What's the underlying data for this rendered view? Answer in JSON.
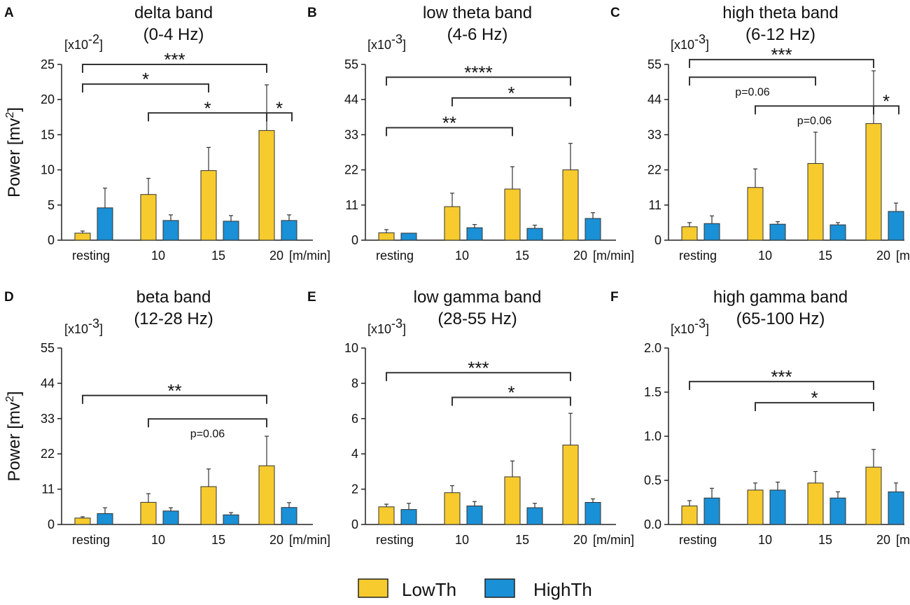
{
  "legend": [
    {
      "label": "LowTh",
      "color": "#f7cb2d"
    },
    {
      "label": "HighTh",
      "color": "#1a90d6"
    }
  ],
  "colors": {
    "low": "#f7cb2d",
    "high": "#1a90d6",
    "axis": "#222222",
    "bracket": "#333333"
  },
  "chart_data": [
    {
      "type": "bar",
      "panel": "A",
      "title": [
        "delta band",
        "(0-4 Hz)"
      ],
      "ylabel": "Power  [mv2]",
      "ylabel_base": "Power  [mv",
      "ylabel_sup": "2",
      "ylabel_end": "]",
      "scale_base": "[x10",
      "scale_exp": "-2",
      "scale_end": "]",
      "ylim": [
        0,
        25
      ],
      "yticks": [
        0,
        5,
        10,
        15,
        20,
        25
      ],
      "yticklabels": [
        "0",
        "5",
        "10",
        "15",
        "20",
        "25"
      ],
      "categories": [
        "resting",
        "10",
        "15",
        "20"
      ],
      "unit": "[m/min]",
      "series": [
        {
          "name": "LowTh",
          "values": [
            1.0,
            6.5,
            9.9,
            15.6
          ],
          "errors": [
            0.3,
            2.3,
            3.3,
            6.5
          ]
        },
        {
          "name": "HighTh",
          "values": [
            4.6,
            2.8,
            2.7,
            2.8
          ],
          "errors": [
            2.8,
            0.8,
            0.8,
            0.8
          ]
        }
      ],
      "annotations": [
        {
          "from": 0,
          "to": 3,
          "y": 25,
          "label": "***"
        },
        {
          "from": 0,
          "to": 2,
          "y": 22.2,
          "label": "*"
        },
        {
          "from": 1,
          "to": 3,
          "y": 18.1,
          "label": "*"
        },
        {
          "from": 3,
          "to": 3.5,
          "y": 18.1,
          "label": "*"
        }
      ]
    },
    {
      "type": "bar",
      "panel": "B",
      "title": [
        "low theta band",
        "(4-6 Hz)"
      ],
      "scale_base": "[x10",
      "scale_exp": "-3",
      "scale_end": "]",
      "ylim": [
        0,
        55
      ],
      "yticks": [
        0,
        11,
        22,
        33,
        44,
        55
      ],
      "yticklabels": [
        "0",
        "11",
        "22",
        "33",
        "44",
        "55"
      ],
      "categories": [
        "resting",
        "10",
        "15",
        "20"
      ],
      "unit": "[m/min]",
      "series": [
        {
          "name": "LowTh",
          "values": [
            2.3,
            10.5,
            16.0,
            22.0
          ],
          "errors": [
            1.0,
            4.2,
            7.0,
            8.3
          ]
        },
        {
          "name": "HighTh",
          "values": [
            2.2,
            3.9,
            3.7,
            6.8
          ],
          "errors": [
            0.0,
            1.0,
            1.0,
            1.8
          ]
        }
      ],
      "annotations": [
        {
          "from": 0,
          "to": 3,
          "y": 51,
          "label": "****"
        },
        {
          "from": 1,
          "to": 3,
          "y": 44.5,
          "label": "*"
        },
        {
          "from": 0,
          "to": 2,
          "y": 35.2,
          "label": "**"
        }
      ]
    },
    {
      "type": "bar",
      "panel": "C",
      "title": [
        "high theta band",
        "(6-12 Hz)"
      ],
      "scale_base": "[x10",
      "scale_exp": "-3",
      "scale_end": "]",
      "ylim": [
        0,
        55
      ],
      "yticks": [
        0,
        11,
        22,
        33,
        44,
        55
      ],
      "yticklabels": [
        "0",
        "11",
        "22",
        "33",
        "44",
        "55"
      ],
      "categories": [
        "resting",
        "10",
        "15",
        "20"
      ],
      "unit": "[m/min]",
      "series": [
        {
          "name": "LowTh",
          "values": [
            4.2,
            16.5,
            24.0,
            36.5
          ],
          "errors": [
            1.3,
            5.8,
            9.8,
            16.5
          ]
        },
        {
          "name": "HighTh",
          "values": [
            5.2,
            5.0,
            4.8,
            9.0
          ],
          "errors": [
            2.4,
            0.8,
            0.7,
            2.6
          ]
        }
      ],
      "annotations": [
        {
          "from": 0,
          "to": 3,
          "y": 56.5,
          "label": "***"
        },
        {
          "from": 0,
          "to": 2,
          "y": 51.0,
          "label": "p=0.06"
        },
        {
          "from": 1,
          "to": 3,
          "y": 42.0,
          "label": "p=0.06"
        },
        {
          "from": 3,
          "to": 3.5,
          "y": 42.0,
          "label": "*"
        }
      ]
    },
    {
      "type": "bar",
      "panel": "D",
      "title": [
        "beta band",
        "(12-28 Hz)"
      ],
      "ylabel": "Power  [mv2]",
      "ylabel_base": "Power  [mv",
      "ylabel_sup": "2",
      "ylabel_end": "]",
      "scale_base": "[x10",
      "scale_exp": "-3",
      "scale_end": "]",
      "ylim": [
        0,
        55
      ],
      "yticks": [
        0,
        11,
        22,
        33,
        44,
        55
      ],
      "yticklabels": [
        "0",
        "11",
        "22",
        "33",
        "44",
        "55"
      ],
      "categories": [
        "resting",
        "10",
        "15",
        "20"
      ],
      "unit": "[m/min]",
      "series": [
        {
          "name": "LowTh",
          "values": [
            2.0,
            6.9,
            11.8,
            18.3
          ],
          "errors": [
            0.4,
            2.7,
            5.5,
            9.2
          ]
        },
        {
          "name": "HighTh",
          "values": [
            3.4,
            4.2,
            3.0,
            5.3
          ],
          "errors": [
            1.8,
            1.0,
            0.7,
            1.5
          ]
        }
      ],
      "annotations": [
        {
          "from": 0,
          "to": 3,
          "y": 40.2,
          "label": "**"
        },
        {
          "from": 1,
          "to": 3,
          "y": 32.9,
          "label": "p=0.06"
        }
      ]
    },
    {
      "type": "bar",
      "panel": "E",
      "title": [
        "low gamma band",
        "(28-55 Hz)"
      ],
      "scale_base": "[x10",
      "scale_exp": "-3",
      "scale_end": "]",
      "ylim": [
        0,
        10
      ],
      "yticks": [
        0,
        2,
        4,
        6,
        8,
        10
      ],
      "yticklabels": [
        "0",
        "2",
        "4",
        "6",
        "8",
        "10"
      ],
      "categories": [
        "resting",
        "10",
        "15",
        "20"
      ],
      "unit": "[m/min]",
      "series": [
        {
          "name": "LowTh",
          "values": [
            1.0,
            1.8,
            2.7,
            4.5
          ],
          "errors": [
            0.15,
            0.4,
            0.9,
            1.8
          ]
        },
        {
          "name": "HighTh",
          "values": [
            0.85,
            1.05,
            0.95,
            1.25
          ],
          "errors": [
            0.35,
            0.25,
            0.25,
            0.2
          ]
        }
      ],
      "annotations": [
        {
          "from": 0,
          "to": 3,
          "y": 8.6,
          "label": "***"
        },
        {
          "from": 1,
          "to": 3,
          "y": 7.2,
          "label": "*"
        }
      ]
    },
    {
      "type": "bar",
      "panel": "F",
      "title": [
        "high gamma band",
        "(65-100 Hz)"
      ],
      "scale_base": "[x10",
      "scale_exp": "-3",
      "scale_end": "]",
      "ylim": [
        0,
        2.0
      ],
      "yticks": [
        0,
        0.5,
        1.0,
        1.5,
        2.0
      ],
      "yticklabels": [
        "0.0",
        "0.5",
        "1.0",
        "1.5",
        "2.0"
      ],
      "categories": [
        "resting",
        "10",
        "15",
        "20"
      ],
      "unit": "[m/min]",
      "series": [
        {
          "name": "LowTh",
          "values": [
            0.21,
            0.39,
            0.47,
            0.65
          ],
          "errors": [
            0.06,
            0.08,
            0.13,
            0.2
          ]
        },
        {
          "name": "HighTh",
          "values": [
            0.3,
            0.39,
            0.3,
            0.37
          ],
          "errors": [
            0.11,
            0.09,
            0.07,
            0.1
          ]
        }
      ],
      "annotations": [
        {
          "from": 0,
          "to": 3,
          "y": 1.62,
          "label": "***"
        },
        {
          "from": 1,
          "to": 3,
          "y": 1.38,
          "label": "*"
        }
      ]
    }
  ]
}
